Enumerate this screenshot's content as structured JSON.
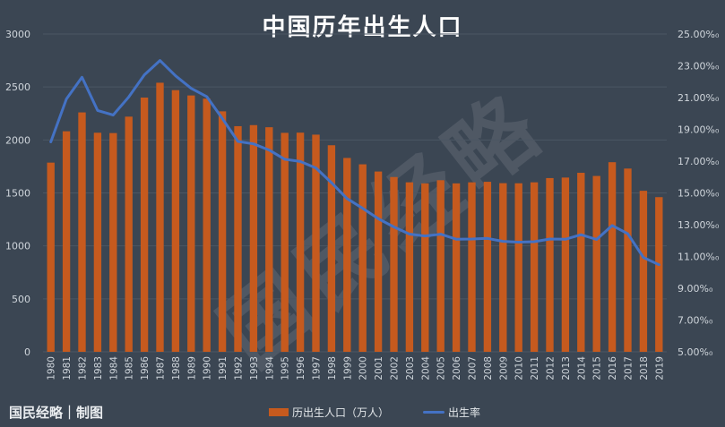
{
  "title": "中国历年出生人口",
  "brand": "国民经略｜制图",
  "watermark": "国民经略",
  "colors": {
    "bar": "#c65a1e",
    "line": "#4472c4",
    "grid": "#4b5663",
    "tick": "#cfd5db"
  },
  "chart_data": {
    "type": "bar+line",
    "categories": [
      "1980",
      "1981",
      "1982",
      "1983",
      "1984",
      "1985",
      "1986",
      "1987",
      "1988",
      "1989",
      "1990",
      "1991",
      "1992",
      "1993",
      "1994",
      "1995",
      "1996",
      "1997",
      "1998",
      "1999",
      "2000",
      "2001",
      "2002",
      "2003",
      "2004",
      "2005",
      "2006",
      "2007",
      "2008",
      "2009",
      "2010",
      "2011",
      "2012",
      "2013",
      "2014",
      "2015",
      "2016",
      "2017",
      "2018",
      "2019"
    ],
    "series": [
      {
        "name": "历出生人口（万人）",
        "type": "bar",
        "axis": "left",
        "values": [
          1786,
          2082,
          2260,
          2068,
          2065,
          2220,
          2400,
          2540,
          2470,
          2420,
          2390,
          2270,
          2130,
          2140,
          2120,
          2067,
          2069,
          2050,
          1950,
          1830,
          1770,
          1702,
          1650,
          1600,
          1590,
          1620,
          1590,
          1600,
          1605,
          1592,
          1591,
          1600,
          1640,
          1645,
          1690,
          1660,
          1790,
          1730,
          1520,
          1460
        ]
      },
      {
        "name": "出生率",
        "type": "line",
        "axis": "right",
        "values": [
          18.21,
          20.91,
          22.28,
          20.19,
          19.9,
          21.04,
          22.43,
          23.33,
          22.37,
          21.58,
          21.06,
          19.68,
          18.24,
          18.09,
          17.7,
          17.12,
          16.98,
          16.57,
          15.64,
          14.64,
          14.03,
          13.38,
          12.86,
          12.41,
          12.29,
          12.4,
          12.09,
          12.1,
          12.14,
          11.95,
          11.9,
          11.93,
          12.1,
          12.08,
          12.37,
          12.07,
          12.95,
          12.43,
          10.94,
          10.48
        ]
      }
    ],
    "y_left": {
      "min": 0,
      "max": 3000,
      "ticks": [
        "0",
        "500",
        "1000",
        "1500",
        "2000",
        "2500",
        "3000"
      ]
    },
    "y_right": {
      "min": 5,
      "max": 25,
      "ticks": [
        "5.00%₀",
        "7.00%₀",
        "9.00%₀",
        "11.00%₀",
        "13.00%₀",
        "15.00%₀",
        "17.00%₀",
        "19.00%₀",
        "21.00%₀",
        "23.00%₀",
        "25.00%₀"
      ]
    },
    "grid": true,
    "legend_position": "bottom"
  }
}
